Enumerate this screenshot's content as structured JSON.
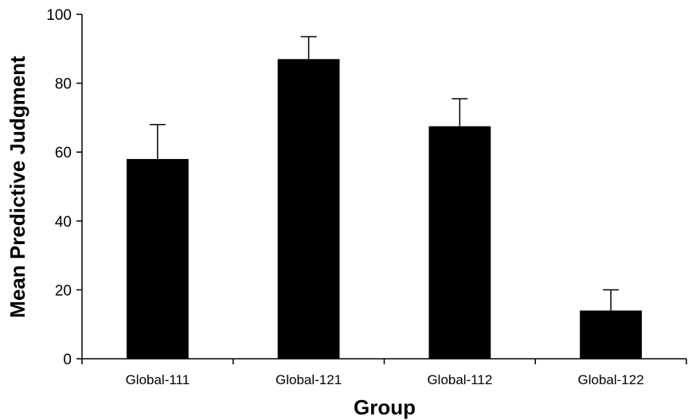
{
  "chart_data": {
    "type": "bar",
    "categories": [
      "Global-111",
      "Global-121",
      "Global-112",
      "Global-122"
    ],
    "values": [
      58,
      87,
      67.5,
      14
    ],
    "error_upper": [
      68,
      93.5,
      75.5,
      20
    ],
    "xlabel": "Group",
    "ylabel": "Mean Predictive Judgment",
    "ylim": [
      0,
      100
    ],
    "yticks": [
      0,
      20,
      40,
      60,
      80,
      100
    ],
    "grid": false,
    "legend": "none"
  },
  "colors": {
    "bar": "#000000",
    "axis": "#000000",
    "background": "#ffffff"
  }
}
